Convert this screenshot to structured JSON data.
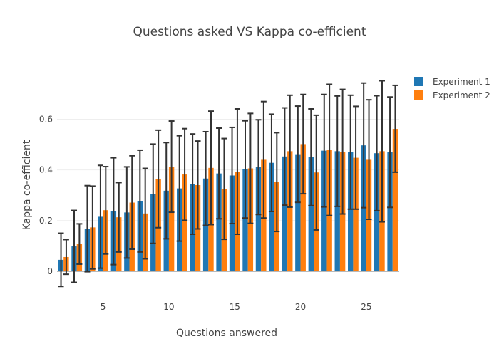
{
  "chart_data": {
    "type": "bar",
    "title": "Questions asked VS Kappa co-efficient",
    "xlabel": "Questions answered",
    "ylabel": "Kappa co-efficient",
    "xlim": [
      1.5,
      27.5
    ],
    "ylim": [
      -0.11,
      0.79
    ],
    "x_ticks": [
      5,
      10,
      15,
      20,
      25
    ],
    "y_ticks": [
      0,
      0.2,
      0.4,
      0.6
    ],
    "y_tick_labels": [
      "0",
      "0.2",
      "0.4",
      "0.6"
    ],
    "x_tick_labels": [
      "5",
      "10",
      "15",
      "20",
      "25"
    ],
    "x": [
      2,
      3,
      4,
      5,
      6,
      7,
      8,
      9,
      10,
      11,
      12,
      13,
      14,
      15,
      16,
      17,
      18,
      19,
      20,
      21,
      22,
      23,
      24,
      25,
      26,
      27
    ],
    "series": [
      {
        "name": "Experiment 1",
        "color": "#1f77b4",
        "values": [
          0.045,
          0.098,
          0.168,
          0.215,
          0.237,
          0.232,
          0.277,
          0.306,
          0.318,
          0.327,
          0.344,
          0.366,
          0.386,
          0.378,
          0.402,
          0.411,
          0.428,
          0.453,
          0.462,
          0.45,
          0.476,
          0.474,
          0.47,
          0.497,
          0.466,
          0.47
        ],
        "err_upper": [
          0.15,
          0.24,
          0.338,
          0.418,
          0.448,
          0.412,
          0.478,
          0.502,
          0.508,
          0.535,
          0.542,
          0.551,
          0.565,
          0.568,
          0.594,
          0.598,
          0.62,
          0.645,
          0.652,
          0.641,
          0.698,
          0.692,
          0.695,
          0.743,
          0.693,
          0.688
        ],
        "err_lower": [
          -0.06,
          -0.044,
          -0.002,
          0.012,
          0.026,
          0.052,
          0.076,
          0.11,
          0.128,
          0.119,
          0.146,
          0.181,
          0.207,
          0.188,
          0.21,
          0.224,
          0.236,
          0.261,
          0.272,
          0.259,
          0.254,
          0.256,
          0.245,
          0.251,
          0.239,
          0.252
        ]
      },
      {
        "name": "Experiment 2",
        "color": "#ff7f0e",
        "values": [
          0.056,
          0.107,
          0.173,
          0.241,
          0.213,
          0.271,
          0.228,
          0.365,
          0.413,
          0.382,
          0.34,
          0.408,
          0.325,
          0.393,
          0.406,
          0.44,
          0.352,
          0.474,
          0.502,
          0.39,
          0.479,
          0.472,
          0.448,
          0.44,
          0.474,
          0.562
        ],
        "err_upper": [
          0.125,
          0.187,
          0.336,
          0.413,
          0.35,
          0.456,
          0.406,
          0.557,
          0.593,
          0.563,
          0.514,
          0.632,
          0.524,
          0.641,
          0.623,
          0.67,
          0.547,
          0.695,
          0.698,
          0.616,
          0.738,
          0.718,
          0.651,
          0.677,
          0.752,
          0.734
        ],
        "err_lower": [
          -0.012,
          0.028,
          0.009,
          0.068,
          0.076,
          0.087,
          0.049,
          0.172,
          0.233,
          0.201,
          0.167,
          0.184,
          0.126,
          0.146,
          0.189,
          0.21,
          0.157,
          0.253,
          0.306,
          0.163,
          0.22,
          0.226,
          0.245,
          0.205,
          0.195,
          0.391
        ]
      }
    ],
    "legend_position": "top-right",
    "grid": true
  }
}
